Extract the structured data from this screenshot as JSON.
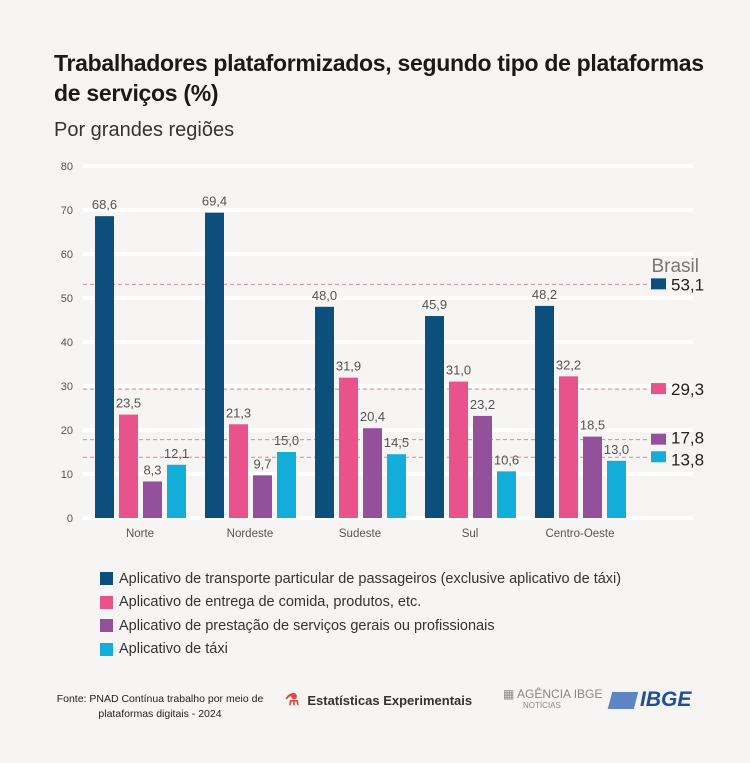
{
  "header": {
    "title": "Trabalhadores plataformizados, segundo tipo de plataformas de serviços (%)",
    "subtitle": "Por grandes regiões"
  },
  "chart_data": {
    "type": "bar",
    "title": "Trabalhadores plataformizados, segundo tipo de plataformas de serviços (%)",
    "subtitle": "Por grandes regiões",
    "categories": [
      "Norte",
      "Nordeste",
      "Sudeste",
      "Sul",
      "Centro-Oeste"
    ],
    "ylim": [
      0,
      80
    ],
    "yticks": [
      0,
      10,
      20,
      30,
      40,
      50,
      60,
      70,
      80
    ],
    "grid": true,
    "series": [
      {
        "name": "Aplicativo de transporte particular de passageiros (exclusive aplicativo de táxi)",
        "color": "#0c4f7d",
        "values": [
          68.6,
          69.4,
          48.0,
          45.9,
          48.2
        ],
        "labels": [
          "68,6",
          "69,4",
          "48,0",
          "45,9",
          "48,2"
        ],
        "brasil": 53.1,
        "brasil_label": "53,1"
      },
      {
        "name": "Aplicativo de entrega de comida, produtos, etc.",
        "color": "#e9528b",
        "values": [
          23.5,
          21.3,
          31.9,
          31.0,
          32.2
        ],
        "labels": [
          "23,5",
          "21,3",
          "31,9",
          "31,0",
          "32,2"
        ],
        "brasil": 29.3,
        "brasil_label": "29,3"
      },
      {
        "name": "Aplicativo de prestação de serviços gerais ou profissionais",
        "color": "#93509b",
        "values": [
          8.3,
          9.7,
          20.4,
          23.2,
          18.5
        ],
        "labels": [
          "8,3",
          "9,7",
          "20,4",
          "23,2",
          "18,5"
        ],
        "brasil": 17.8,
        "brasil_label": "17,8"
      },
      {
        "name": "Aplicativo de táxi",
        "color": "#12aed9",
        "values": [
          12.1,
          15.0,
          14.5,
          10.6,
          13.0
        ],
        "labels": [
          "12,1",
          "15,0",
          "14,5",
          "10,6",
          "13,0"
        ],
        "brasil": 13.8,
        "brasil_label": "13,8"
      }
    ],
    "reference_title": "Brasil",
    "reference_line_color": "#d98a9f"
  },
  "footer": {
    "source": "Fonte: PNAD Contínua trabalho por meio de plataformas digitais - 2024",
    "experimental": "Estatísticas Experimentais",
    "agencia": "AGÊNCIA IBGE",
    "agencia_sub": "NOTÍCIAS",
    "ibge": "IBGE"
  }
}
